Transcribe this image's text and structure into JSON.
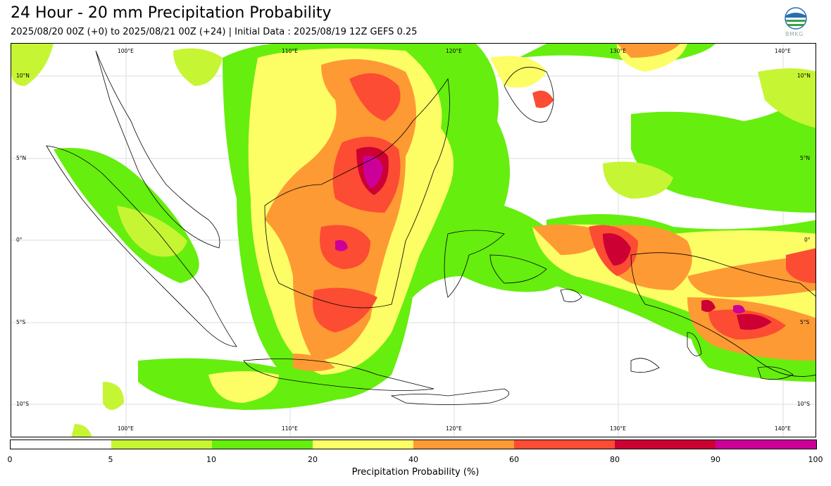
{
  "header": {
    "title": "24 Hour - 20 mm Precipitation Probability",
    "subtitle": "2025/08/20 00Z (+0) to 2025/08/21 00Z (+24) | Initial Data : 2025/08/19 12Z GEFS 0.25",
    "logo_text": "BMKG"
  },
  "map": {
    "lon_labels_top": [
      "100°E",
      "110°E",
      "120°E",
      "130°E",
      "140°E"
    ],
    "lon_labels_bottom": [
      "100°E",
      "110°E",
      "120°E",
      "130°E",
      "140°E"
    ],
    "lat_labels_left": [
      "10°N",
      "5°N",
      "0°",
      "5°S",
      "10°S"
    ],
    "lat_labels_right": [
      "10°N",
      "5°N",
      "0°",
      "5°S",
      "10°S"
    ]
  },
  "legend": {
    "label": "Precipitation Probability (%)",
    "ticks": [
      "0",
      "5",
      "10",
      "20",
      "40",
      "60",
      "80",
      "90",
      "100"
    ],
    "colors": [
      "#ffffff",
      "#c6f533",
      "#66ee0e",
      "#fdfd66",
      "#fe9a33",
      "#fc4c33",
      "#cc0033",
      "#cc0099"
    ]
  }
}
